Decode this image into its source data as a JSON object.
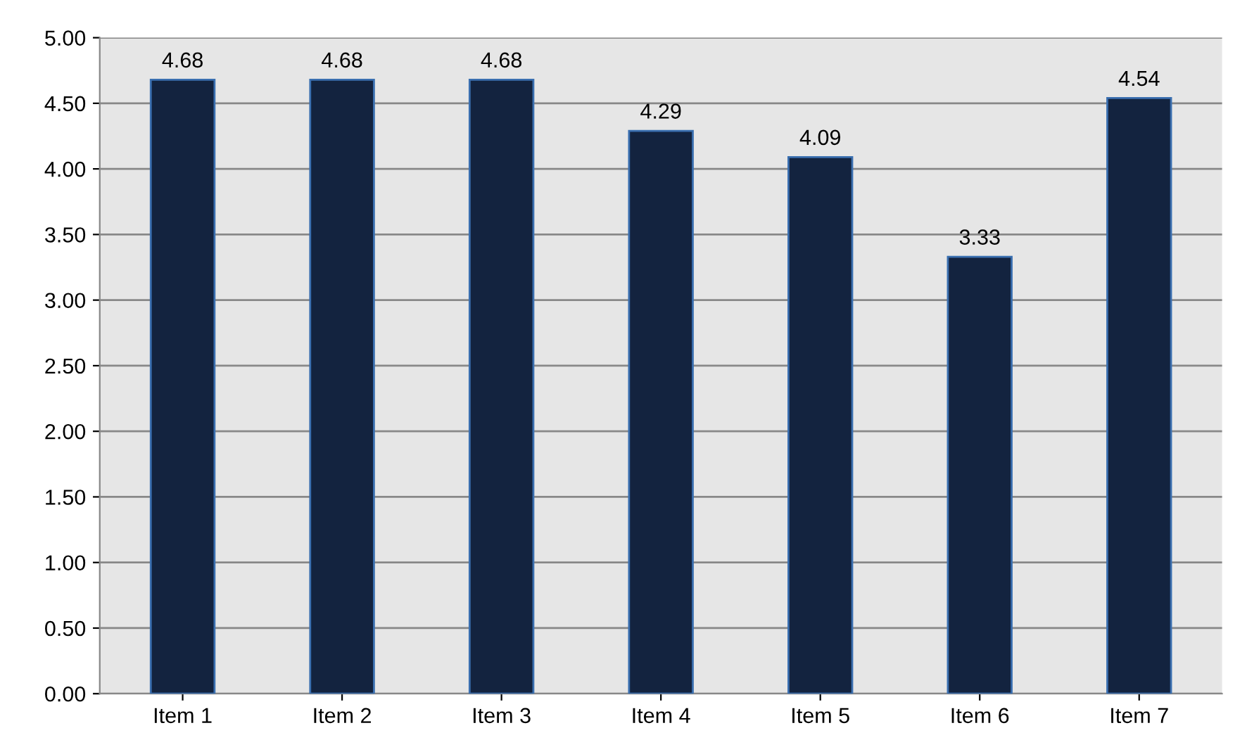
{
  "chart_data": {
    "type": "bar",
    "categories": [
      "Item 1",
      "Item 2",
      "Item 3",
      "Item 4",
      "Item 5",
      "Item 6",
      "Item 7"
    ],
    "values": [
      4.68,
      4.68,
      4.68,
      4.29,
      4.09,
      3.33,
      4.54
    ],
    "color": "#13233f",
    "data_labels": true,
    "grid": "y",
    "ylim": [
      0,
      5
    ],
    "yticks": [
      {
        "value": 0,
        "label": "0.00"
      },
      {
        "value": 0.5,
        "label": "0.50"
      },
      {
        "value": 1,
        "label": "1.00"
      },
      {
        "value": 1.5,
        "label": "1.50"
      },
      {
        "value": 2,
        "label": "2.00"
      },
      {
        "value": 2.5,
        "label": "2.50"
      },
      {
        "value": 3,
        "label": "3.00"
      },
      {
        "value": 3.5,
        "label": "3.50"
      },
      {
        "value": 4,
        "label": "4.00"
      },
      {
        "value": 4.5,
        "label": "4.50"
      },
      {
        "value": 5,
        "label": "5.00"
      }
    ]
  }
}
